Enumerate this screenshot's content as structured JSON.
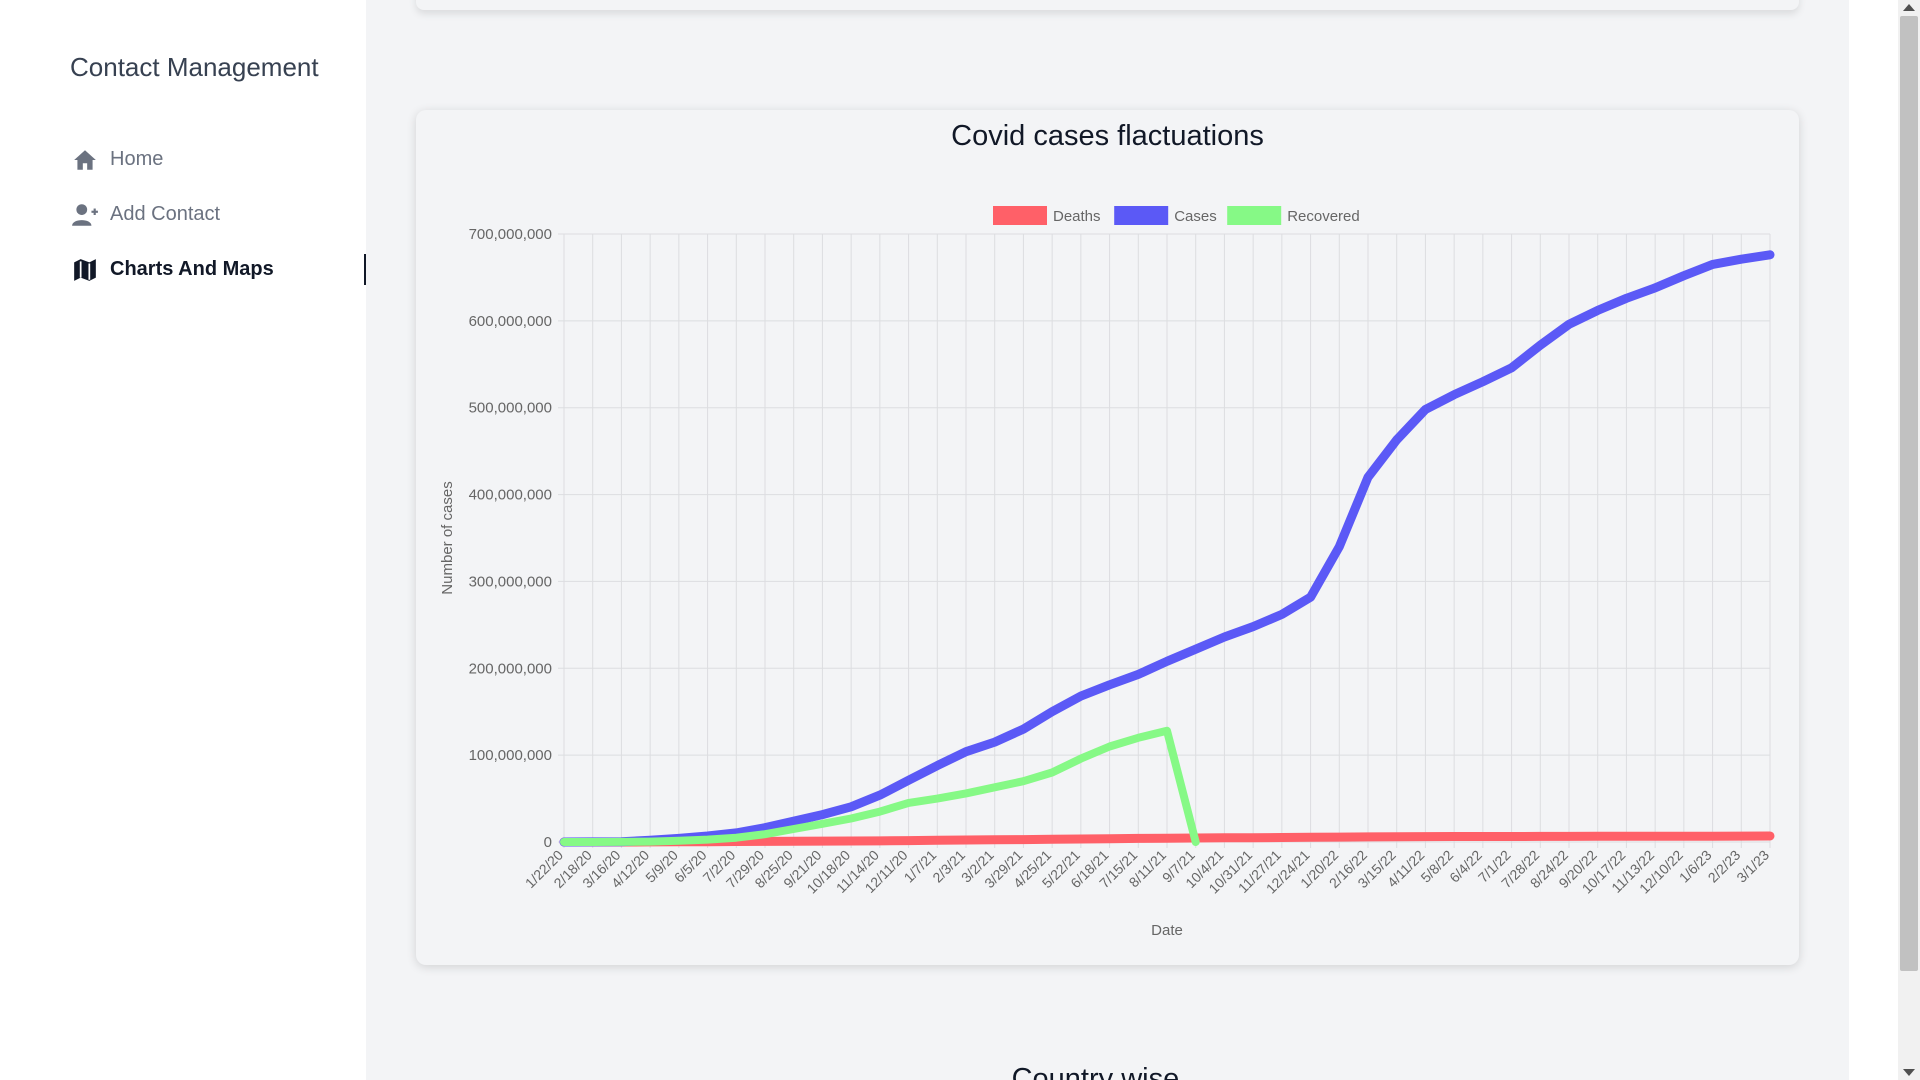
{
  "app": {
    "title": "Contact Management"
  },
  "sidebar": {
    "items": [
      {
        "label": "Home",
        "icon": "home-icon",
        "active": false
      },
      {
        "label": "Add Contact",
        "icon": "user-plus-icon",
        "active": false
      },
      {
        "label": "Charts And Maps",
        "icon": "map-icon",
        "active": true
      }
    ]
  },
  "chart": {
    "title": "Covid cases flactuations"
  },
  "next_section": {
    "heading": "Country wise..."
  },
  "colors": {
    "deaths": "#ff6068",
    "cases": "#5b59f6",
    "recovered": "#86f986",
    "grid": "#dcdde0"
  },
  "chart_data": {
    "type": "line",
    "title": "Covid cases flactuations",
    "xlabel": "Date",
    "ylabel": "Number of cases",
    "ylim": [
      0,
      700000000
    ],
    "yticks": [
      0,
      100000000,
      200000000,
      300000000,
      400000000,
      500000000,
      600000000,
      700000000
    ],
    "ytick_labels": [
      "0",
      "100,000,000",
      "200,000,000",
      "300,000,000",
      "400,000,000",
      "500,000,000",
      "600,000,000",
      "700,000,000"
    ],
    "legend_position": "top-center",
    "grid": true,
    "categories": [
      "1/22/20",
      "2/18/20",
      "3/16/20",
      "4/12/20",
      "5/9/20",
      "6/5/20",
      "7/2/20",
      "7/29/20",
      "8/25/20",
      "9/21/20",
      "10/18/20",
      "11/14/20",
      "12/11/20",
      "1/7/21",
      "2/3/21",
      "3/2/21",
      "3/29/21",
      "4/25/21",
      "5/22/21",
      "6/18/21",
      "7/15/21",
      "8/11/21",
      "9/7/21",
      "10/4/21",
      "10/31/21",
      "11/27/21",
      "12/24/21",
      "1/20/22",
      "2/16/22",
      "3/15/22",
      "4/11/22",
      "5/8/22",
      "6/4/22",
      "7/1/22",
      "7/28/22",
      "8/24/22",
      "9/20/22",
      "10/17/22",
      "11/13/22",
      "12/10/22",
      "1/6/23",
      "2/2/23",
      "3/1/23"
    ],
    "series": [
      {
        "name": "Deaths",
        "color": "#ff6068",
        "values": [
          0,
          1000,
          30000,
          120000,
          280000,
          400000,
          520000,
          680000,
          830000,
          980000,
          1120000,
          1320000,
          1580000,
          1900000,
          2250000,
          2520000,
          2800000,
          3120000,
          3480000,
          3850000,
          4100000,
          4350000,
          4600000,
          4850000,
          5000000,
          5180000,
          5400000,
          5650000,
          5850000,
          6050000,
          6200000,
          6280000,
          6330000,
          6380000,
          6450000,
          6500000,
          6550000,
          6600000,
          6630000,
          6660000,
          6720000,
          6800000,
          6860000
        ]
      },
      {
        "name": "Cases",
        "color": "#5b59f6",
        "values": [
          0,
          80000,
          400000,
          1900000,
          4200000,
          6900000,
          10500000,
          16500000,
          24000000,
          31500000,
          40500000,
          54000000,
          71000000,
          88000000,
          104000000,
          115000000,
          130000000,
          150000000,
          168000000,
          181000000,
          193000000,
          208000000,
          222000000,
          236000000,
          248000000,
          262000000,
          282000000,
          340000000,
          420000000,
          463000000,
          498000000,
          515000000,
          530000000,
          546000000,
          572000000,
          596000000,
          612000000,
          626000000,
          638000000,
          652000000,
          665000000,
          671000000,
          676000000
        ]
      },
      {
        "name": "Recovered",
        "color": "#86f986",
        "values": [
          0,
          20000,
          80000,
          450000,
          1500000,
          2800000,
          5000000,
          9000000,
          15000000,
          21000000,
          27000000,
          35000000,
          45000000,
          50000000,
          56000000,
          63000000,
          70000000,
          80000000,
          96000000,
          110000000,
          120000000,
          128000000,
          0,
          null,
          null,
          null,
          null,
          null,
          null,
          null,
          null,
          null,
          null,
          null,
          null,
          null,
          null,
          null,
          null,
          null,
          null,
          null,
          null
        ]
      }
    ]
  }
}
